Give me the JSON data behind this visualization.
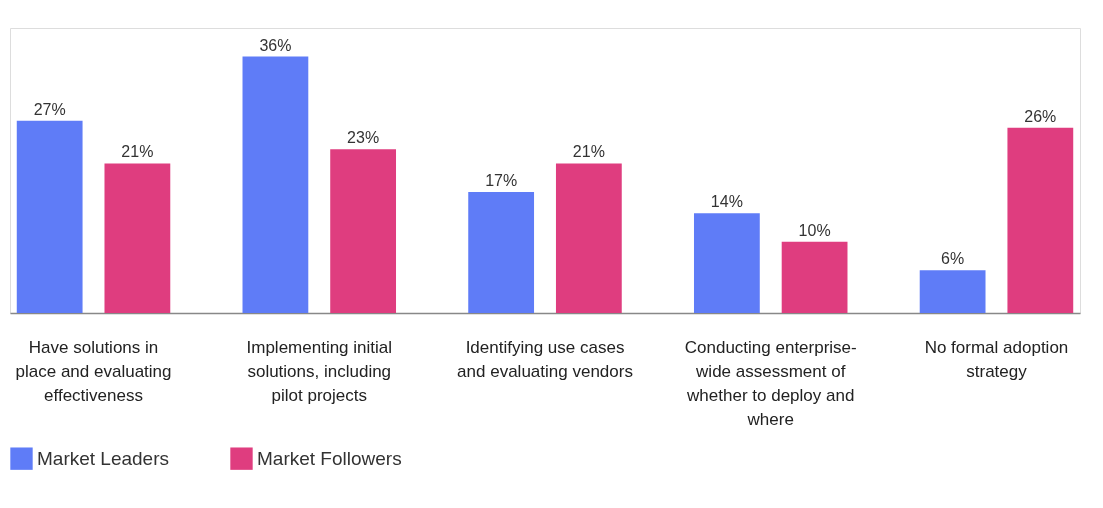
{
  "chart_data": {
    "type": "bar",
    "categories": [
      "Have solutions in place and evaluating effectiveness",
      "Implementing initial solutions, including pilot projects",
      "Identifying use cases and evaluating vendors",
      "Conducting enterprise-wide assessment of whether to deploy and where",
      "No formal adoption strategy"
    ],
    "series": [
      {
        "name": "Market Leaders",
        "color": "#5f7cf7",
        "values": [
          27,
          36,
          17,
          14,
          6
        ],
        "value_labels": [
          "27%",
          "36%",
          "17%",
          "14%",
          "6%"
        ]
      },
      {
        "name": "Market Followers",
        "color": "#df3d7f",
        "values": [
          21,
          23,
          21,
          10,
          26
        ],
        "value_labels": [
          "21%",
          "23%",
          "21%",
          "10%",
          "26%"
        ]
      }
    ],
    "legend": "bottom",
    "grid": false
  }
}
